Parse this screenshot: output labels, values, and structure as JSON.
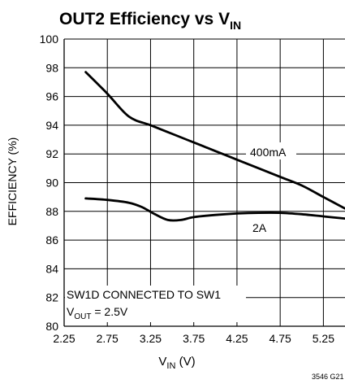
{
  "chart_data": {
    "type": "line",
    "title": {
      "main": "OUT2 Efficiency vs V",
      "sub": "IN"
    },
    "xlabel": {
      "main": "V",
      "sub": "IN",
      "rest": " (V)"
    },
    "ylabel": "EFFICIENCY (%)",
    "xlim": [
      2.25,
      5.5
    ],
    "ylim": [
      80,
      100
    ],
    "x_ticks": [
      2.25,
      2.75,
      3.25,
      3.75,
      4.25,
      4.75,
      5.25
    ],
    "x_tick_labels": [
      "2.25",
      "2.75",
      "3.25",
      "3.75",
      "4.25",
      "4.75",
      "5.25"
    ],
    "y_ticks": [
      80,
      82,
      84,
      86,
      88,
      90,
      92,
      94,
      96,
      98,
      100
    ],
    "y_tick_labels": [
      "80",
      "82",
      "84",
      "86",
      "88",
      "90",
      "92",
      "94",
      "96",
      "98",
      "100"
    ],
    "grid": true,
    "series": [
      {
        "name": "400mA",
        "x": [
          2.5,
          2.75,
          3.0,
          3.25,
          3.5,
          3.75,
          4.0,
          4.25,
          4.5,
          4.75,
          5.0,
          5.25,
          5.5
        ],
        "y": [
          97.7,
          96.2,
          94.6,
          94.0,
          93.4,
          92.8,
          92.2,
          91.6,
          91.0,
          90.4,
          89.8,
          89.0,
          88.2
        ]
      },
      {
        "name": "2A",
        "x": [
          2.5,
          2.75,
          3.0,
          3.15,
          3.3,
          3.45,
          3.6,
          3.75,
          4.0,
          4.25,
          4.5,
          4.75,
          5.0,
          5.25,
          5.5
        ],
        "y": [
          88.9,
          88.8,
          88.6,
          88.3,
          87.8,
          87.4,
          87.4,
          87.6,
          87.75,
          87.85,
          87.9,
          87.9,
          87.8,
          87.65,
          87.5
        ]
      }
    ],
    "annotations": {
      "line1": "SW1D CONNECTED TO SW1",
      "line2_main": "V",
      "line2_sub": "OUT",
      "line2_rest": " = 2.5V"
    },
    "footnote": "3546 G21"
  }
}
